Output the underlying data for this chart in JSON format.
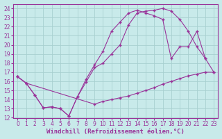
{
  "background_color": "#c8eaea",
  "grid_color": "#a8d0d0",
  "line_color": "#993399",
  "xlim": [
    -0.5,
    23.5
  ],
  "ylim": [
    12,
    24.5
  ],
  "xlabel": "Windchill (Refroidissement éolien,°C)",
  "xlabel_fontsize": 6.5,
  "xtick_fontsize": 5.5,
  "ytick_fontsize": 5.5,
  "line1_x": [
    0,
    1,
    2,
    3,
    4,
    5,
    6,
    7,
    8,
    9,
    10,
    11,
    12,
    13,
    14,
    15,
    16,
    17,
    18,
    19,
    20,
    21,
    22,
    23
  ],
  "line1_y": [
    16.5,
    15.8,
    14.5,
    13.1,
    13.2,
    13.0,
    12.2,
    14.3,
    15.9,
    17.5,
    18.0,
    19.0,
    20.0,
    22.2,
    23.5,
    23.7,
    23.8,
    24.0,
    23.7,
    22.8,
    21.5,
    19.8,
    18.5,
    17.0
  ],
  "line2_x": [
    0,
    1,
    2,
    3,
    4,
    5,
    6,
    7,
    8,
    9,
    10,
    11,
    12,
    13,
    14,
    15,
    16,
    17,
    18,
    19,
    20,
    21,
    22
  ],
  "line2_y": [
    16.5,
    15.8,
    14.5,
    13.1,
    13.2,
    13.0,
    12.2,
    14.3,
    16.2,
    17.8,
    19.3,
    21.5,
    22.5,
    23.5,
    23.8,
    23.5,
    23.2,
    22.8,
    18.5,
    19.8,
    19.8,
    21.5,
    18.5
  ],
  "line3_x": [
    0,
    1,
    9,
    10,
    11,
    12,
    13,
    14,
    15,
    16,
    17,
    18,
    19,
    20,
    21,
    22,
    23
  ],
  "line3_y": [
    16.5,
    15.8,
    13.5,
    13.8,
    14.0,
    14.2,
    14.4,
    14.7,
    15.0,
    15.3,
    15.7,
    16.0,
    16.3,
    16.6,
    16.8,
    17.0,
    17.0
  ]
}
